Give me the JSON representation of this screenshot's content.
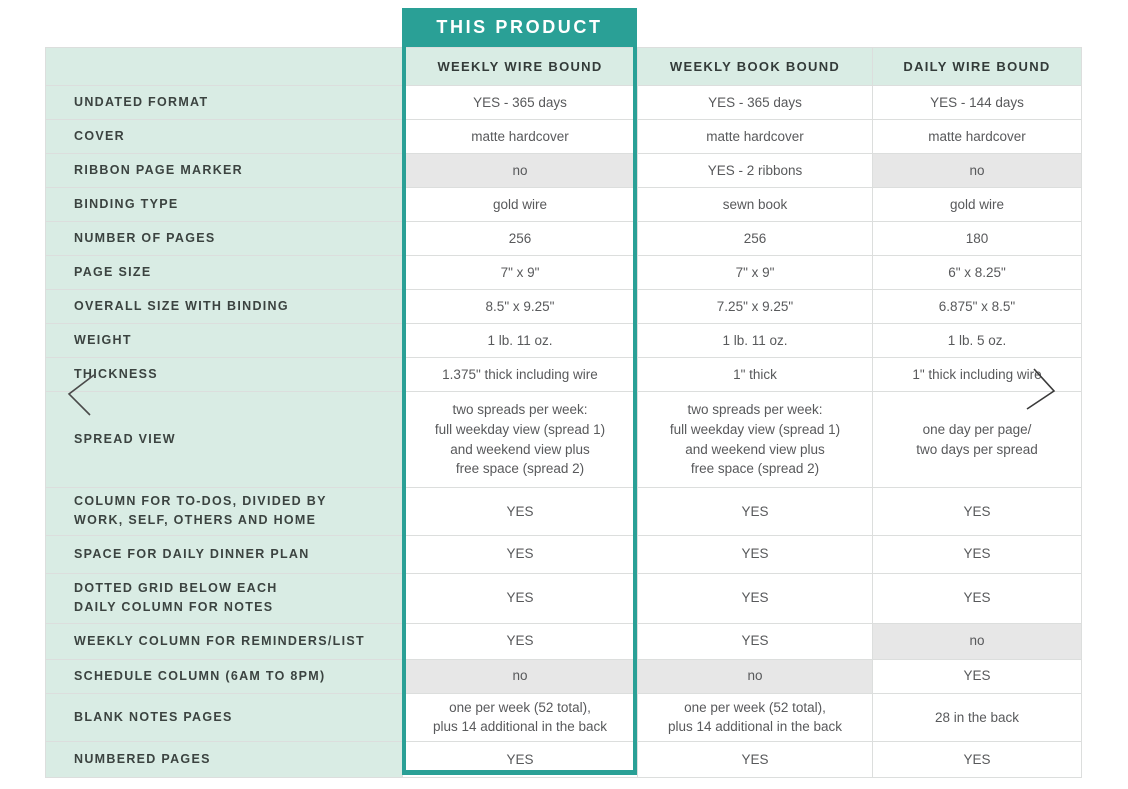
{
  "colors": {
    "accent_teal": "#2aa096",
    "mint_green": "#d9ece4",
    "shaded_gray": "#e7e7e7"
  },
  "banner": {
    "label": "THIS PRODUCT"
  },
  "carousel": {
    "prev_icon": "chevron-left",
    "next_icon": "chevron-right"
  },
  "table": {
    "columns": [
      "WEEKLY WIRE BOUND",
      "WEEKLY BOOK BOUND",
      "DAILY WIRE BOUND"
    ],
    "highlighted_column": "WEEKLY WIRE BOUND",
    "rows": [
      {
        "label": "UNDATED FORMAT",
        "cells": [
          {
            "text": "YES - 365 days"
          },
          {
            "text": "YES - 365 days"
          },
          {
            "text": "YES - 144 days"
          }
        ]
      },
      {
        "label": "COVER",
        "cells": [
          {
            "text": "matte hardcover"
          },
          {
            "text": "matte hardcover"
          },
          {
            "text": "matte hardcover"
          }
        ]
      },
      {
        "label": "RIBBON PAGE MARKER",
        "cells": [
          {
            "text": "no",
            "shaded": true
          },
          {
            "text": "YES - 2 ribbons"
          },
          {
            "text": "no",
            "shaded": true
          }
        ]
      },
      {
        "label": "BINDING TYPE",
        "cells": [
          {
            "text": "gold wire"
          },
          {
            "text": "sewn book"
          },
          {
            "text": "gold wire"
          }
        ]
      },
      {
        "label": "NUMBER OF PAGES",
        "cells": [
          {
            "text": "256"
          },
          {
            "text": "256"
          },
          {
            "text": "180"
          }
        ]
      },
      {
        "label": "PAGE SIZE",
        "cells": [
          {
            "text": "7\" x 9\""
          },
          {
            "text": "7\" x 9\""
          },
          {
            "text": "6\" x 8.25\""
          }
        ]
      },
      {
        "label": "OVERALL SIZE WITH BINDING",
        "cells": [
          {
            "text": "8.5\" x 9.25\""
          },
          {
            "text": "7.25\" x 9.25\""
          },
          {
            "text": "6.875\" x 8.5\""
          }
        ]
      },
      {
        "label": "WEIGHT",
        "cells": [
          {
            "text": "1 lb. 11 oz."
          },
          {
            "text": "1 lb. 11 oz."
          },
          {
            "text": "1 lb. 5 oz."
          }
        ]
      },
      {
        "label": "THICKNESS",
        "cells": [
          {
            "text": "1.375\" thick including wire"
          },
          {
            "text": "1\" thick"
          },
          {
            "text": "1\" thick including wire"
          }
        ]
      },
      {
        "label": "SPREAD VIEW",
        "cells": [
          {
            "text": "two spreads per week:\nfull weekday view (spread 1)\nand weekend view plus\nfree space (spread 2)"
          },
          {
            "text": "two spreads per week:\nfull weekday view (spread 1)\nand weekend view plus\nfree space (spread 2)"
          },
          {
            "text": "one day per page/\ntwo days per spread"
          }
        ]
      },
      {
        "label": "COLUMN FOR TO-DOS, DIVIDED BY\nWORK, SELF, OTHERS AND HOME",
        "cells": [
          {
            "text": "YES"
          },
          {
            "text": "YES"
          },
          {
            "text": "YES"
          }
        ]
      },
      {
        "label": "SPACE FOR DAILY DINNER PLAN",
        "cells": [
          {
            "text": "YES"
          },
          {
            "text": "YES"
          },
          {
            "text": "YES"
          }
        ]
      },
      {
        "label": "DOTTED GRID BELOW EACH\nDAILY COLUMN FOR NOTES",
        "cells": [
          {
            "text": "YES"
          },
          {
            "text": "YES"
          },
          {
            "text": "YES"
          }
        ]
      },
      {
        "label": "WEEKLY COLUMN FOR REMINDERS/LIST",
        "cells": [
          {
            "text": "YES"
          },
          {
            "text": "YES"
          },
          {
            "text": "no",
            "shaded": true
          }
        ]
      },
      {
        "label": "SCHEDULE COLUMN (6AM TO 8PM)",
        "cells": [
          {
            "text": "no",
            "shaded": true
          },
          {
            "text": "no",
            "shaded": true
          },
          {
            "text": "YES"
          }
        ]
      },
      {
        "label": "BLANK NOTES PAGES",
        "cells": [
          {
            "text": "one per week (52 total),\nplus 14 additional in the back"
          },
          {
            "text": "one per week (52 total),\nplus 14 additional in the back"
          },
          {
            "text": "28 in the back"
          }
        ]
      },
      {
        "label": "NUMBERED PAGES",
        "cells": [
          {
            "text": "YES"
          },
          {
            "text": "YES"
          },
          {
            "text": "YES"
          }
        ]
      }
    ]
  }
}
